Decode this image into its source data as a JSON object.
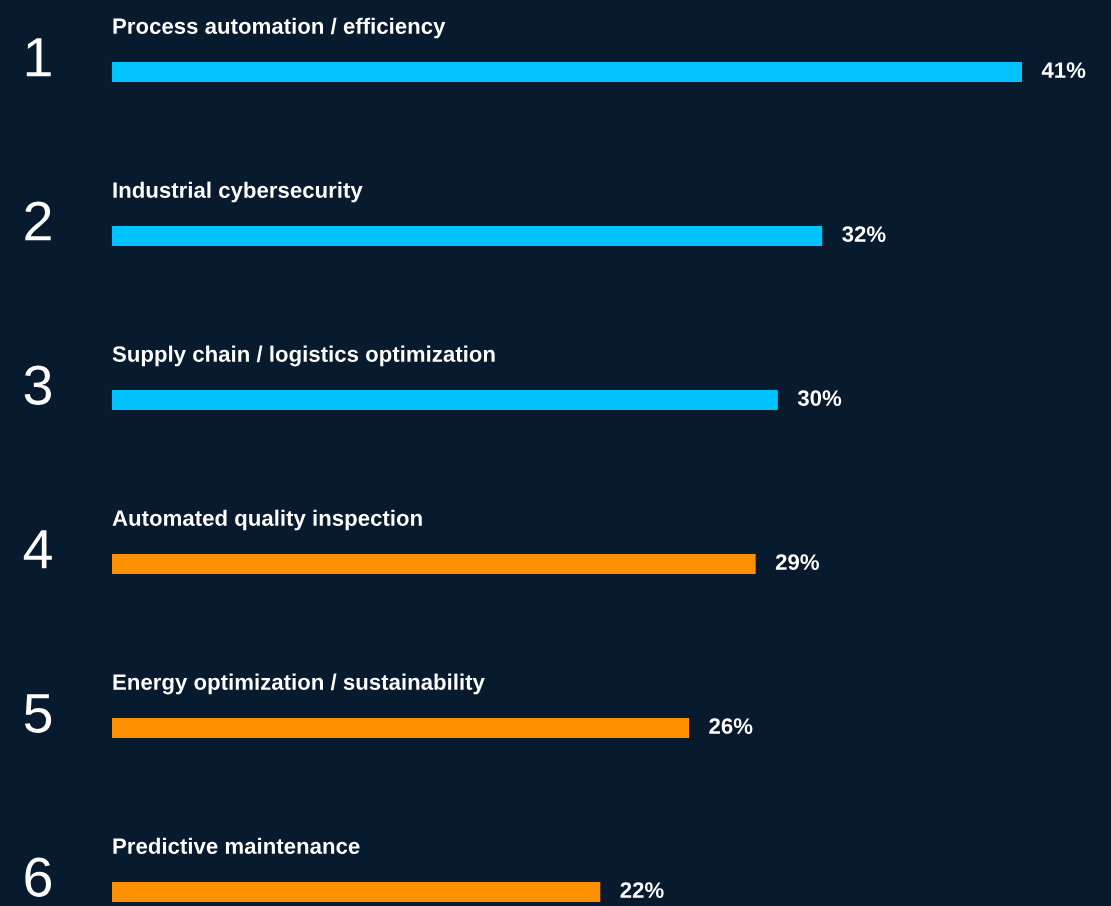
{
  "chart_data": {
    "type": "bar",
    "orientation": "horizontal",
    "categories": [
      "Process automation / efficiency",
      "Industrial cybersecurity",
      "Supply chain / logistics optimization",
      "Automated quality inspection",
      "Energy optimization / sustainability",
      "Predictive maintenance"
    ],
    "values": [
      41,
      32,
      30,
      29,
      26,
      22
    ],
    "colors": [
      "#00c3ff",
      "#00c3ff",
      "#00c3ff",
      "#ff9100",
      "#ff9100",
      "#ff9100"
    ],
    "value_labels": [
      "41%",
      "32%",
      "30%",
      "29%",
      "26%",
      "22%"
    ],
    "annotations": [
      "1",
      "2",
      "3",
      "4",
      "5",
      "6"
    ]
  }
}
